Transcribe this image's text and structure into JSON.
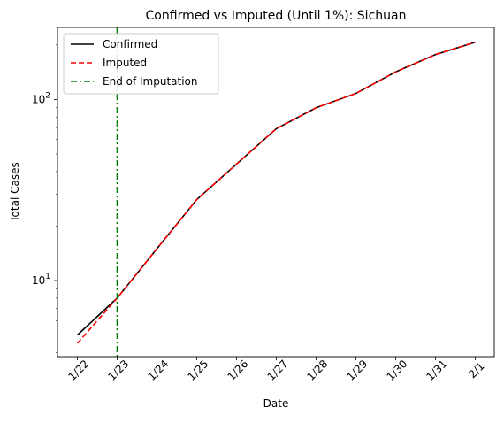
{
  "chart_data": {
    "type": "line",
    "title": "Confirmed vs Imputed (Until 1%): Sichuan",
    "xlabel": "Date",
    "ylabel": "Total Cases",
    "yscale": "log",
    "ylim": [
      3.8,
      250
    ],
    "categories": [
      "1/22",
      "1/23",
      "1/24",
      "1/25",
      "1/26",
      "1/27",
      "1/28",
      "1/29",
      "1/30",
      "1/31",
      "2/1"
    ],
    "y_major_ticks": [
      {
        "value": 10,
        "base": "10",
        "exp": "1"
      },
      {
        "value": 100,
        "base": "10",
        "exp": "2"
      }
    ],
    "series": [
      {
        "name": "Confirmed",
        "color": "#000000",
        "style": "solid",
        "values": [
          5,
          8,
          15,
          28,
          44,
          69,
          90,
          108,
          142,
          177,
          207
        ]
      },
      {
        "name": "Imputed",
        "color": "#ff0000",
        "style": "dashed",
        "values": [
          4.5,
          8,
          15,
          28,
          44,
          69,
          90,
          108,
          142,
          177,
          207
        ]
      }
    ],
    "vline": {
      "name": "End of Imputation",
      "x": "1/23",
      "color": "#008000",
      "style": "dashdot"
    },
    "legend": {
      "placement": "upper-left",
      "entries": [
        {
          "label": "Confirmed",
          "color": "#000000",
          "style": "solid"
        },
        {
          "label": "Imputed",
          "color": "#ff0000",
          "style": "dashed"
        },
        {
          "label": "End of Imputation",
          "color": "#008000",
          "style": "dashdot"
        }
      ]
    },
    "grid": false
  }
}
